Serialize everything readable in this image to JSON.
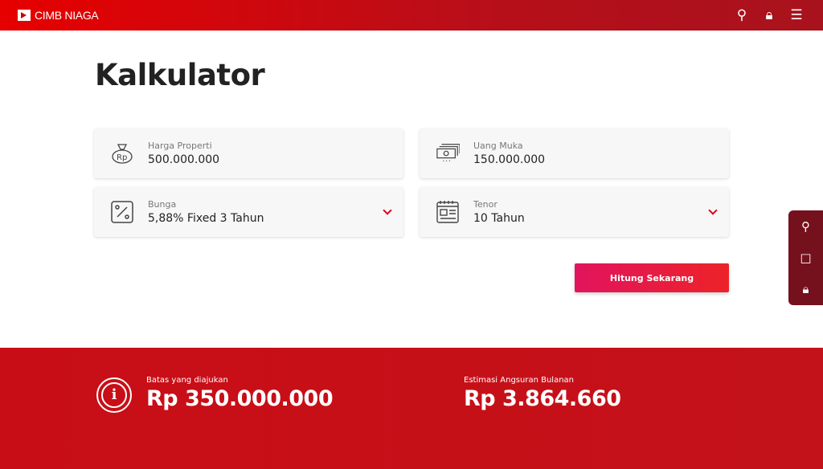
{
  "header": {
    "brand": "CIMB NIAGA",
    "icons": [
      "search-icon",
      "lock-icon",
      "menu-icon"
    ]
  },
  "page_title": "Kalkulator",
  "fields": [
    {
      "label": "Harga Properti",
      "value": "500.000.000",
      "icon": "money-bag-icon"
    },
    {
      "label": "Uang Muka",
      "value": "150.000.000",
      "icon": "cash-icon"
    },
    {
      "label": "Bunga",
      "value": "5,88% Fixed 3 Tahun",
      "icon": "percent-icon",
      "dropdown": true
    },
    {
      "label": "Tenor",
      "value": "10 Tahun",
      "icon": "calendar-icon",
      "dropdown": true
    }
  ],
  "submit_label": "Hitung Sekarang",
  "side_icons": [
    "location-icon",
    "chat-icon",
    "lock-icon"
  ],
  "results": {
    "limit_label": "Batas yang diajukan",
    "limit_value": "Rp 350.000.000",
    "installment_label": "Estimasi Angsuran Bulanan",
    "installment_value": "Rp 3.864.660"
  },
  "colors": {
    "brand": "#c8101a",
    "accent": "#e0001a",
    "side": "#75111d"
  }
}
